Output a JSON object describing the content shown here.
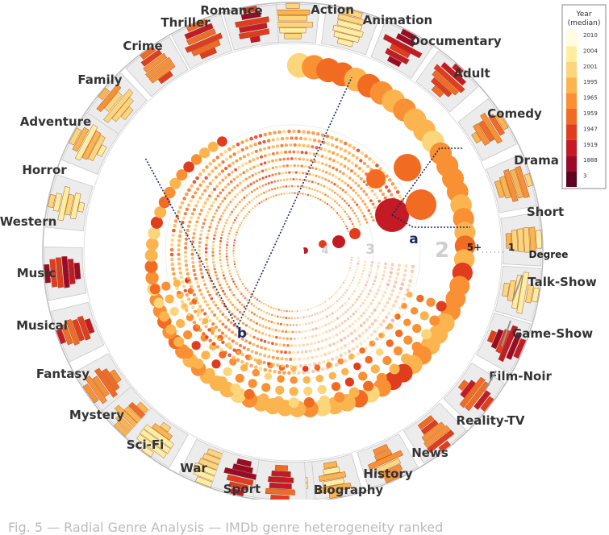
{
  "genres_left": [
    "Romance",
    "Thriller",
    "Crime",
    "Family",
    "Adventure",
    "Horror",
    "Western",
    "Music",
    "Musical",
    "Fantasy",
    "Mystery",
    "Sci-Fi",
    "War",
    "Sport"
  ],
  "genres_right": [
    "Action",
    "Animation",
    "Documentary",
    "Adult",
    "Comedy",
    "Drama",
    "Short",
    "Talk-Show",
    "Game-Show",
    "Film-Noir",
    "Reality-TV",
    "News",
    "History",
    "Biography"
  ],
  "degree_axis": {
    "label": "Degree",
    "left_tick": "5+",
    "right_tick": "1"
  },
  "ring_labels": [
    "2",
    "3",
    "4"
  ],
  "markers": [
    "a",
    "b"
  ],
  "legend": {
    "title_line1": "Year",
    "title_line2": "(median)",
    "ticks": [
      "2010",
      "2004",
      "2001",
      "1995",
      "1965",
      "1959",
      "1947",
      "1919",
      "1888",
      "3"
    ],
    "colors": [
      "#fffde0",
      "#ffeea0",
      "#fdd57a",
      "#fcb44e",
      "#f99034",
      "#f26b22",
      "#e03d1e",
      "#c41a25",
      "#9b0a28",
      "#5e0122"
    ]
  },
  "caption": "Fig. 5 — Radial Genre Analysis — IMDb genre heterogeneity ranked"
}
